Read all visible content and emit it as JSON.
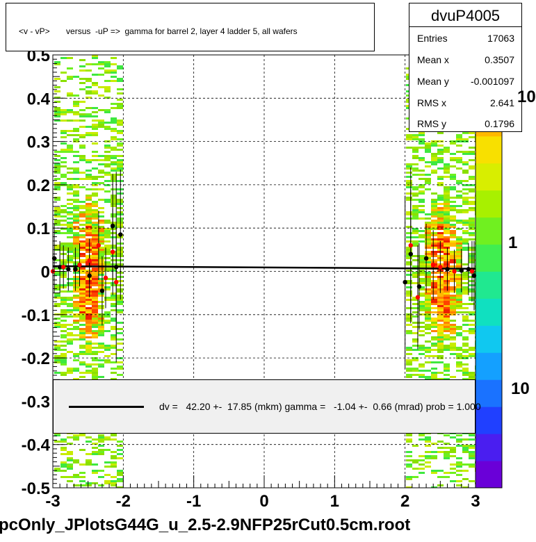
{
  "title": "<v - vP>       versus  -uP =>  gamma for barrel 2, layer 4 ladder 5, all wafers",
  "footer": "pcOnly_JPlotsG44G_u_2.5-2.9NFP25rCut0.5cm.root",
  "stats": {
    "name": "dvuP4005",
    "rows": [
      {
        "label": "Entries",
        "value": "17063"
      },
      {
        "label": "Mean x",
        "value": "0.3507"
      },
      {
        "label": "Mean y",
        "value": "-0.001097"
      },
      {
        "label": "RMS x",
        "value": "2.641"
      },
      {
        "label": "RMS y",
        "value": "0.1796"
      }
    ]
  },
  "legend": {
    "text": "dv =   42.20 +-  17.85 (mkm) gamma =   -1.04 +-  0.66 (mrad) prob = 1.000"
  },
  "palette": {
    "labels": [
      "10",
      "1",
      "10"
    ],
    "colors": [
      "#6a00d8",
      "#4a1ef0",
      "#2040ff",
      "#1a72ff",
      "#14a0ff",
      "#10c8f0",
      "#10e0c0",
      "#20e890",
      "#40ee50",
      "#70f020",
      "#a8f000",
      "#d8ee00",
      "#f8e000",
      "#ffb800",
      "#ff8000",
      "#ff4000"
    ]
  },
  "chart_data": {
    "type": "scatter",
    "xlim": [
      -3,
      3
    ],
    "ylim": [
      -0.5,
      0.5
    ],
    "xticks": [
      "-3",
      "-2",
      "-1",
      "0",
      "1",
      "2",
      "3"
    ],
    "yticks": [
      "-0.5",
      "-0.4",
      "-0.3",
      "-0.2",
      "-0.1",
      "0",
      "0.1",
      "0.2",
      "0.3",
      "0.4",
      "0.5"
    ],
    "grid": true,
    "fit": {
      "x": [
        -3,
        3
      ],
      "y": [
        0.012,
        0.006
      ]
    },
    "series": [
      {
        "color": "#000000",
        "points": [
          {
            "x": -2.98,
            "y": 0.03,
            "err": 0.08
          },
          {
            "x": -2.9,
            "y": 0.01,
            "err": 0.06
          },
          {
            "x": -2.78,
            "y": 0.005,
            "err": 0.05
          },
          {
            "x": -2.68,
            "y": 0.005,
            "err": 0.05
          },
          {
            "x": -2.48,
            "y": -0.01,
            "err": 0.05
          },
          {
            "x": -2.3,
            "y": -0.045,
            "err": 0.08
          },
          {
            "x": -2.15,
            "y": 0.105,
            "err": 0.12
          },
          {
            "x": -2.1,
            "y": 0.01,
            "err": 0.22
          },
          {
            "x": -2.04,
            "y": 0.085,
            "err": 0.15
          },
          {
            "x": 2.0,
            "y": -0.025,
            "err": 0.2
          },
          {
            "x": 2.08,
            "y": 0.04,
            "err": 0.15
          },
          {
            "x": 2.2,
            "y": -0.035,
            "err": 0.1
          },
          {
            "x": 2.3,
            "y": 0.03,
            "err": 0.08
          },
          {
            "x": 2.6,
            "y": 0.005,
            "err": 0.05
          },
          {
            "x": 2.8,
            "y": 0.002,
            "err": 0.05
          },
          {
            "x": 2.9,
            "y": 0.005,
            "err": 0.06
          },
          {
            "x": 2.98,
            "y": -0.01,
            "err": 0.08
          }
        ]
      },
      {
        "color": "#ff0000",
        "points": [
          {
            "x": -3.0,
            "y": 0.0,
            "err": 0.06
          },
          {
            "x": -2.85,
            "y": 0.01,
            "err": 0.05
          },
          {
            "x": -2.62,
            "y": 0.015,
            "err": 0.05
          },
          {
            "x": -2.48,
            "y": 0.025,
            "err": 0.05
          },
          {
            "x": -2.35,
            "y": 0.06,
            "err": 0.08
          },
          {
            "x": -2.25,
            "y": -0.015,
            "err": 0.07
          },
          {
            "x": -2.15,
            "y": 0.045,
            "err": 0.1
          },
          {
            "x": -2.1,
            "y": -0.025,
            "err": 0.12
          },
          {
            "x": 2.08,
            "y": 0.06,
            "err": 0.18
          },
          {
            "x": 2.18,
            "y": -0.06,
            "err": 0.12
          },
          {
            "x": 2.4,
            "y": 0.015,
            "err": 0.08
          },
          {
            "x": 2.5,
            "y": 0.01,
            "err": 0.06
          },
          {
            "x": 2.7,
            "y": 0.0,
            "err": 0.05
          },
          {
            "x": 2.95,
            "y": 0.0,
            "err": 0.07
          }
        ]
      }
    ]
  }
}
